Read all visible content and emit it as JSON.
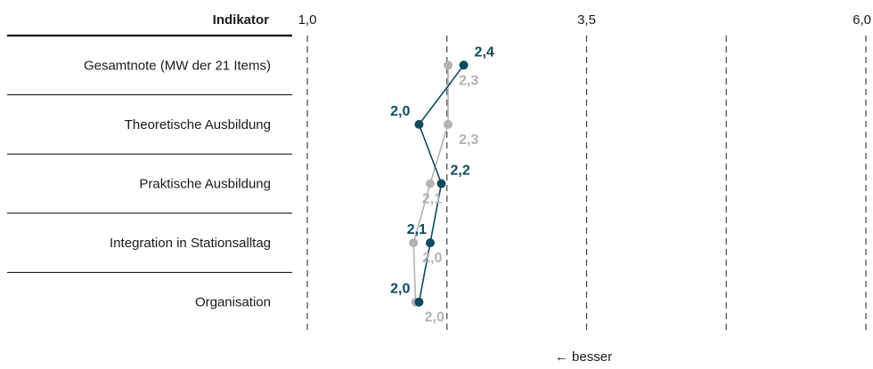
{
  "chart_data": {
    "type": "line",
    "orientation": "horizontal",
    "column_header": "Indikator",
    "categories": [
      "Gesamtnote (MW der 21 Items)",
      "Theoretische Ausbildung",
      "Praktische Ausbildung",
      "Integration in Stationsalltag",
      "Organisation"
    ],
    "x_ticks": [
      "1,0",
      "3,5",
      "6,0"
    ],
    "xlim": [
      1.0,
      6.0
    ],
    "gridlines": [
      1.0,
      2.25,
      3.5,
      4.75,
      6.0
    ],
    "footnote": "← besser",
    "series": [
      {
        "color": "#0d4a5c",
        "values": [
          2.4,
          2.0,
          2.2,
          2.1,
          2.0
        ],
        "value_labels": [
          "2,4",
          "2,0",
          "2,2",
          "2,1",
          "2,0"
        ]
      },
      {
        "color": "#b3b3b3",
        "values": [
          2.26,
          2.26,
          2.1,
          1.95,
          1.97
        ],
        "value_labels": [
          "2,3",
          "2,3",
          "2,1",
          "2,0",
          "2,0"
        ]
      }
    ]
  }
}
